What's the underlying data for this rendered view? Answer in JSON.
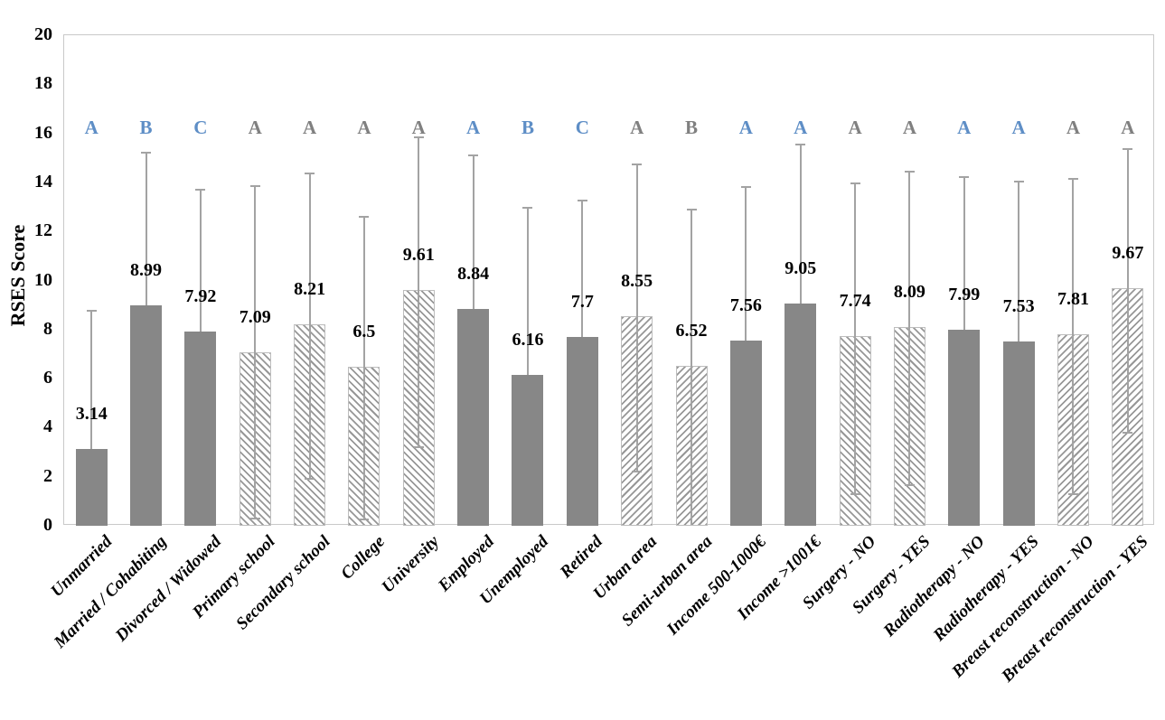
{
  "chart_data": {
    "type": "bar",
    "title": "",
    "xlabel": "",
    "ylabel": "RSES Score",
    "ylim": [
      0,
      20
    ],
    "ytick_step": 2,
    "yticks": [
      "0",
      "2",
      "4",
      "6",
      "8",
      "10",
      "12",
      "14",
      "16",
      "18",
      "20"
    ],
    "grid": false,
    "legend_position": "none",
    "colors": {
      "solid_bar_fill": "#878787",
      "hatch_stripe": "#979797",
      "error_bar": "#a3a3a3",
      "axis_border": "#c9c9c9",
      "letter_blue": "#5e8ec6",
      "letter_gray": "#808080",
      "label_text": "#000000"
    },
    "categories": [
      "Unmarried",
      "Married / Cohabiting",
      "Divorced / Widowed",
      "Primary school",
      "Secondary school",
      "College",
      "University",
      "Employed",
      "Unemployed",
      "Retired",
      "Urban area",
      "Semi-urban area",
      "Income 500-1000€",
      "Income >1001€",
      "Surgery - NO",
      "Surgery - YES",
      "Radiotherapy - NO",
      "Radiotherapy - YES",
      "Breast reconstruction - NO",
      "Breast reconstruction - YES"
    ],
    "values": [
      3.14,
      8.99,
      7.92,
      7.09,
      8.21,
      6.5,
      9.61,
      8.84,
      6.16,
      7.7,
      8.55,
      6.52,
      7.56,
      9.05,
      7.74,
      8.09,
      7.99,
      7.53,
      7.81,
      9.67
    ],
    "bars": [
      {
        "category": "Unmarried",
        "value": 3.14,
        "value_label": "3.14",
        "letter": "A",
        "letter_color": "blue",
        "fill": "solid",
        "error_upper": 8.75,
        "error_lower": null
      },
      {
        "category": "Married / Cohabiting",
        "value": 8.99,
        "value_label": "8.99",
        "letter": "B",
        "letter_color": "blue",
        "fill": "solid",
        "error_upper": 15.2,
        "error_lower": null
      },
      {
        "category": "Divorced / Widowed",
        "value": 7.92,
        "value_label": "7.92",
        "letter": "C",
        "letter_color": "blue",
        "fill": "solid",
        "error_upper": 13.7,
        "error_lower": null
      },
      {
        "category": "Primary school",
        "value": 7.09,
        "value_label": "7.09",
        "letter": "A",
        "letter_color": "gray",
        "fill": "hatch-down",
        "error_upper": 13.85,
        "error_lower": 0.3
      },
      {
        "category": "Secondary school",
        "value": 8.21,
        "value_label": "8.21",
        "letter": "A",
        "letter_color": "gray",
        "fill": "hatch-down",
        "error_upper": 14.35,
        "error_lower": 1.92
      },
      {
        "category": "College",
        "value": 6.5,
        "value_label": "6.5",
        "letter": "A",
        "letter_color": "gray",
        "fill": "hatch-down",
        "error_upper": 12.6,
        "error_lower": 0.25
      },
      {
        "category": "University",
        "value": 9.61,
        "value_label": "9.61",
        "letter": "A",
        "letter_color": "gray",
        "fill": "hatch-down",
        "error_upper": 15.85,
        "error_lower": 3.22
      },
      {
        "category": "Employed",
        "value": 8.84,
        "value_label": "8.84",
        "letter": "A",
        "letter_color": "blue",
        "fill": "solid",
        "error_upper": 15.1,
        "error_lower": null
      },
      {
        "category": "Unemployed",
        "value": 6.16,
        "value_label": "6.16",
        "letter": "B",
        "letter_color": "blue",
        "fill": "solid",
        "error_upper": 12.95,
        "error_lower": null
      },
      {
        "category": "Retired",
        "value": 7.7,
        "value_label": "7.7",
        "letter": "C",
        "letter_color": "blue",
        "fill": "solid",
        "error_upper": 13.25,
        "error_lower": null
      },
      {
        "category": "Urban area",
        "value": 8.55,
        "value_label": "8.55",
        "letter": "A",
        "letter_color": "gray",
        "fill": "hatch-up",
        "error_upper": 14.75,
        "error_lower": 2.2
      },
      {
        "category": "Semi-urban area",
        "value": 6.52,
        "value_label": "6.52",
        "letter": "B",
        "letter_color": "gray",
        "fill": "hatch-up",
        "error_upper": 12.9,
        "error_lower": 0.05
      },
      {
        "category": "Income 500-1000€",
        "value": 7.56,
        "value_label": "7.56",
        "letter": "A",
        "letter_color": "blue",
        "fill": "solid",
        "error_upper": 13.8,
        "error_lower": null
      },
      {
        "category": "Income >1001€",
        "value": 9.05,
        "value_label": "9.05",
        "letter": "A",
        "letter_color": "blue",
        "fill": "solid",
        "error_upper": 15.55,
        "error_lower": null
      },
      {
        "category": "Surgery - NO",
        "value": 7.74,
        "value_label": "7.74",
        "letter": "A",
        "letter_color": "gray",
        "fill": "hatch-down",
        "error_upper": 13.95,
        "error_lower": 1.3
      },
      {
        "category": "Surgery - YES",
        "value": 8.09,
        "value_label": "8.09",
        "letter": "A",
        "letter_color": "gray",
        "fill": "hatch-down",
        "error_upper": 14.45,
        "error_lower": 1.65
      },
      {
        "category": "Radiotherapy - NO",
        "value": 7.99,
        "value_label": "7.99",
        "letter": "A",
        "letter_color": "blue",
        "fill": "solid",
        "error_upper": 14.2,
        "error_lower": null
      },
      {
        "category": "Radiotherapy - YES",
        "value": 7.53,
        "value_label": "7.53",
        "letter": "A",
        "letter_color": "blue",
        "fill": "solid",
        "error_upper": 14.05,
        "error_lower": null
      },
      {
        "category": "Breast reconstruction - NO",
        "value": 7.81,
        "value_label": "7.81",
        "letter": "A",
        "letter_color": "gray",
        "fill": "hatch-up",
        "error_upper": 14.15,
        "error_lower": 1.3
      },
      {
        "category": "Breast reconstruction - YES",
        "value": 9.67,
        "value_label": "9.67",
        "letter": "A",
        "letter_color": "gray",
        "fill": "hatch-up",
        "error_upper": 15.35,
        "error_lower": 3.8
      }
    ]
  }
}
